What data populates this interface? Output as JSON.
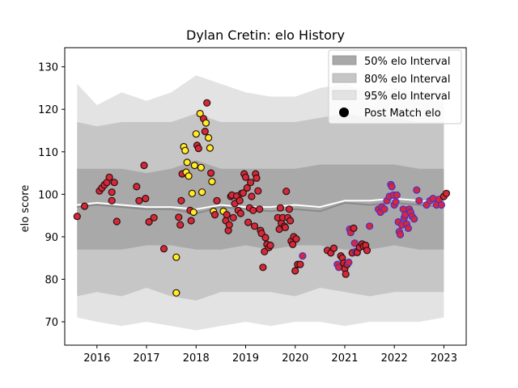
{
  "chart_data": {
    "type": "scatter",
    "title": "Dylan Cretin: elo History",
    "xlabel": "",
    "ylabel": "elo score",
    "xlim": [
      2015.35,
      2023.45
    ],
    "ylim": [
      64.5,
      134.5
    ],
    "xticks": [
      "2016",
      "2017",
      "2018",
      "2019",
      "2020",
      "2021",
      "2022",
      "2023"
    ],
    "yticks": [
      "70",
      "80",
      "90",
      "100",
      "110",
      "120",
      "130"
    ],
    "legend": {
      "position": "top-right",
      "entries": [
        "50% elo Interval",
        "80% elo Interval",
        "95% elo Interval",
        "Post Match elo"
      ]
    },
    "colors": {
      "band50": "#a9a9a9",
      "band80": "#c6c6c6",
      "band95": "#e3e3e3",
      "median_line": "#8a8a8a",
      "mean_line": "#ffffff",
      "point_red": "#d62839",
      "point_yellow": "#ffee22",
      "edge_dark": "#2a1010",
      "edge_blue": "#4b2fc9"
    },
    "intervals": {
      "x": [
        2015.6,
        2016.0,
        2016.5,
        2017.0,
        2017.5,
        2018.0,
        2018.5,
        2019.0,
        2019.5,
        2020.0,
        2020.5,
        2021.0,
        2021.5,
        2022.0,
        2022.5,
        2023.0
      ],
      "p95_upper": [
        126,
        121,
        124,
        122,
        124,
        128,
        126,
        124,
        123,
        123,
        125,
        126,
        124,
        125,
        124,
        124
      ],
      "p95_lower": [
        71,
        70,
        69,
        70,
        69,
        68,
        69,
        70,
        69,
        70,
        70,
        69,
        70,
        70,
        70,
        71
      ],
      "p80_upper": [
        117,
        116,
        117,
        117,
        117,
        119,
        117,
        117,
        117,
        117,
        118,
        119,
        118,
        118,
        117,
        117
      ],
      "p80_lower": [
        76,
        77,
        76,
        78,
        76,
        75,
        77,
        77,
        77,
        76,
        78,
        77,
        76,
        77,
        77,
        77
      ],
      "p50_upper": [
        106,
        106,
        106,
        105,
        106,
        108,
        106,
        106,
        106,
        106,
        107,
        107,
        107,
        107,
        106,
        106
      ],
      "p50_lower": [
        87,
        87,
        87,
        88,
        88,
        87,
        87,
        88,
        87,
        88,
        88,
        87,
        87,
        88,
        87,
        87
      ],
      "median": [
        97,
        97.5,
        97,
        96.5,
        96.5,
        95.5,
        97,
        96.5,
        96,
        96.5,
        96,
        98,
        97.5,
        98,
        97.5,
        97
      ],
      "mean": [
        97.5,
        98,
        97.5,
        97,
        97,
        96.5,
        97.5,
        97,
        97,
        97.5,
        97,
        98.5,
        98.5,
        99,
        98.5,
        98
      ]
    },
    "series": [
      {
        "name": "Post Match elo",
        "points": [
          [
            2015.6,
            94.8,
            "r",
            "d"
          ],
          [
            2015.75,
            97.2,
            "r",
            "d"
          ],
          [
            2016.05,
            100.8,
            "r",
            "d"
          ],
          [
            2016.1,
            101.5,
            "r",
            "d"
          ],
          [
            2016.15,
            102.2,
            "r",
            "d"
          ],
          [
            2016.2,
            102.8,
            "r",
            "d"
          ],
          [
            2016.25,
            104.0,
            "r",
            "d"
          ],
          [
            2016.3,
            98.5,
            "r",
            "d"
          ],
          [
            2016.35,
            102.8,
            "r",
            "d"
          ],
          [
            2016.4,
            93.6,
            "r",
            "d"
          ],
          [
            2016.3,
            100.5,
            "r",
            "d"
          ],
          [
            2016.8,
            101.8,
            "r",
            "d"
          ],
          [
            2016.85,
            98.5,
            "r",
            "d"
          ],
          [
            2016.95,
            106.8,
            "r",
            "d"
          ],
          [
            2016.98,
            99.0,
            "r",
            "d"
          ],
          [
            2017.05,
            93.5,
            "r",
            "d"
          ],
          [
            2017.15,
            94.5,
            "r",
            "d"
          ],
          [
            2017.35,
            87.2,
            "r",
            "d"
          ],
          [
            2017.6,
            85.2,
            "y",
            "d"
          ],
          [
            2017.6,
            76.8,
            "y",
            "d"
          ],
          [
            2017.65,
            94.6,
            "r",
            "d"
          ],
          [
            2017.68,
            92.8,
            "r",
            "d"
          ],
          [
            2017.7,
            98.5,
            "r",
            "d"
          ],
          [
            2017.72,
            104.8,
            "r",
            "d"
          ],
          [
            2017.75,
            111.2,
            "y",
            "d"
          ],
          [
            2017.78,
            110.3,
            "y",
            "d"
          ],
          [
            2017.8,
            105.2,
            "y",
            "d"
          ],
          [
            2017.82,
            107.5,
            "y",
            "d"
          ],
          [
            2017.85,
            104.3,
            "y",
            "d"
          ],
          [
            2017.88,
            96.2,
            "r",
            "d"
          ],
          [
            2017.9,
            93.8,
            "r",
            "d"
          ],
          [
            2017.92,
            100.2,
            "y",
            "d"
          ],
          [
            2017.95,
            95.8,
            "y",
            "d"
          ],
          [
            2017.97,
            106.8,
            "y",
            "d"
          ],
          [
            2018.0,
            114.2,
            "y",
            "d"
          ],
          [
            2018.02,
            111.5,
            "r",
            "d"
          ],
          [
            2018.05,
            110.8,
            "r",
            "d"
          ],
          [
            2018.08,
            119.0,
            "y",
            "d"
          ],
          [
            2018.1,
            106.3,
            "y",
            "d"
          ],
          [
            2018.12,
            100.5,
            "y",
            "d"
          ],
          [
            2018.15,
            117.8,
            "r",
            "d"
          ],
          [
            2018.18,
            114.8,
            "r",
            "d"
          ],
          [
            2018.2,
            116.8,
            "y",
            "d"
          ],
          [
            2018.22,
            121.5,
            "r",
            "d"
          ],
          [
            2018.25,
            113.3,
            "y",
            "d"
          ],
          [
            2018.28,
            110.9,
            "y",
            "d"
          ],
          [
            2018.3,
            105.0,
            "r",
            "d"
          ],
          [
            2018.32,
            103.0,
            "y",
            "d"
          ],
          [
            2018.35,
            96.0,
            "y",
            "d"
          ],
          [
            2018.38,
            95.2,
            "r",
            "d"
          ],
          [
            2018.42,
            98.5,
            "r",
            "d"
          ],
          [
            2018.55,
            96.0,
            "y",
            "d"
          ],
          [
            2018.6,
            93.8,
            "r",
            "d"
          ],
          [
            2018.62,
            95.2,
            "r",
            "d"
          ],
          [
            2018.65,
            91.5,
            "r",
            "d"
          ],
          [
            2018.67,
            92.8,
            "r",
            "d"
          ],
          [
            2018.7,
            99.5,
            "r",
            "d"
          ],
          [
            2018.72,
            99.8,
            "r",
            "d"
          ],
          [
            2018.75,
            94.5,
            "r",
            "d"
          ],
          [
            2018.78,
            97.8,
            "r",
            "d"
          ],
          [
            2018.82,
            99.6,
            "r",
            "d"
          ],
          [
            2018.85,
            96.2,
            "r",
            "d"
          ],
          [
            2018.88,
            98.5,
            "r",
            "d"
          ],
          [
            2018.9,
            95.5,
            "r",
            "d"
          ],
          [
            2018.92,
            100.2,
            "r",
            "d"
          ],
          [
            2018.95,
            100.3,
            "r",
            "d"
          ],
          [
            2018.97,
            104.8,
            "r",
            "d"
          ],
          [
            2019.0,
            104.0,
            "r",
            "d"
          ],
          [
            2019.03,
            101.5,
            "r",
            "d"
          ],
          [
            2019.05,
            93.4,
            "r",
            "d"
          ],
          [
            2019.08,
            96.8,
            "r",
            "d"
          ],
          [
            2019.1,
            102.8,
            "r",
            "d"
          ],
          [
            2019.12,
            99.5,
            "r",
            "d"
          ],
          [
            2019.15,
            96.2,
            "r",
            "d"
          ],
          [
            2019.18,
            92.5,
            "r",
            "d"
          ],
          [
            2019.2,
            104.8,
            "r",
            "d"
          ],
          [
            2019.22,
            103.8,
            "r",
            "d"
          ],
          [
            2019.25,
            100.8,
            "r",
            "d"
          ],
          [
            2019.28,
            96.5,
            "r",
            "d"
          ],
          [
            2019.3,
            91.5,
            "r",
            "d"
          ],
          [
            2019.32,
            90.8,
            "r",
            "d"
          ],
          [
            2019.35,
            82.8,
            "r",
            "d"
          ],
          [
            2019.38,
            86.5,
            "r",
            "d"
          ],
          [
            2019.4,
            89.8,
            "r",
            "d"
          ],
          [
            2019.43,
            88.2,
            "r",
            "d"
          ],
          [
            2019.47,
            87.5,
            "r",
            "d"
          ],
          [
            2019.5,
            88.0,
            "r",
            "d"
          ],
          [
            2019.65,
            94.5,
            "r",
            "d"
          ],
          [
            2019.68,
            91.8,
            "r",
            "d"
          ],
          [
            2019.7,
            96.8,
            "r",
            "d"
          ],
          [
            2019.72,
            93.2,
            "r",
            "d"
          ],
          [
            2019.75,
            94.5,
            "r",
            "d"
          ],
          [
            2019.78,
            92.5,
            "r",
            "d"
          ],
          [
            2019.8,
            92.2,
            "r",
            "d"
          ],
          [
            2019.82,
            100.7,
            "r",
            "d"
          ],
          [
            2019.85,
            94.5,
            "r",
            "d"
          ],
          [
            2019.88,
            96.5,
            "r",
            "d"
          ],
          [
            2019.9,
            93.8,
            "r",
            "d"
          ],
          [
            2019.92,
            89.0,
            "r",
            "d"
          ],
          [
            2019.95,
            88.2,
            "r",
            "d"
          ],
          [
            2019.97,
            90.0,
            "r",
            "d"
          ],
          [
            2020.0,
            82.0,
            "r",
            "d"
          ],
          [
            2020.02,
            89.5,
            "r",
            "d"
          ],
          [
            2020.05,
            83.5,
            "r",
            "d"
          ],
          [
            2020.1,
            83.5,
            "r",
            "d"
          ],
          [
            2020.15,
            85.5,
            "r",
            "b"
          ],
          [
            2020.65,
            86.8,
            "r",
            "d"
          ],
          [
            2020.72,
            86.2,
            "r",
            "d"
          ],
          [
            2020.78,
            87.3,
            "r",
            "d"
          ],
          [
            2020.85,
            83.5,
            "r",
            "b"
          ],
          [
            2020.88,
            82.8,
            "r",
            "b"
          ],
          [
            2020.92,
            85.5,
            "r",
            "d"
          ],
          [
            2020.95,
            85.0,
            "r",
            "d"
          ],
          [
            2020.98,
            83.8,
            "r",
            "d"
          ],
          [
            2021.0,
            82.5,
            "r",
            "d"
          ],
          [
            2021.02,
            81.2,
            "r",
            "d"
          ],
          [
            2021.05,
            83.5,
            "r",
            "d"
          ],
          [
            2021.08,
            84.0,
            "r",
            "b"
          ],
          [
            2021.1,
            91.8,
            "r",
            "b"
          ],
          [
            2021.12,
            91.0,
            "r",
            "b"
          ],
          [
            2021.15,
            86.2,
            "r",
            "d"
          ],
          [
            2021.18,
            92.0,
            "r",
            "d"
          ],
          [
            2021.2,
            88.5,
            "r",
            "b"
          ],
          [
            2021.22,
            86.5,
            "r",
            "b"
          ],
          [
            2021.25,
            86.3,
            "r",
            "d"
          ],
          [
            2021.3,
            87.5,
            "r",
            "d"
          ],
          [
            2021.35,
            88.3,
            "r",
            "d"
          ],
          [
            2021.38,
            87.8,
            "r",
            "d"
          ],
          [
            2021.42,
            88.0,
            "r",
            "d"
          ],
          [
            2021.45,
            86.8,
            "r",
            "d"
          ],
          [
            2021.5,
            92.5,
            "r",
            "b"
          ],
          [
            2021.68,
            96.5,
            "r",
            "b"
          ],
          [
            2021.72,
            95.8,
            "r",
            "b"
          ],
          [
            2021.75,
            97.0,
            "r",
            "b"
          ],
          [
            2021.8,
            96.5,
            "r",
            "b"
          ],
          [
            2021.85,
            98.5,
            "r",
            "b"
          ],
          [
            2021.9,
            99.5,
            "r",
            "b"
          ],
          [
            2021.93,
            102.3,
            "r",
            "b"
          ],
          [
            2021.95,
            101.8,
            "r",
            "b"
          ],
          [
            2021.98,
            99.8,
            "r",
            "b"
          ],
          [
            2022.0,
            97.5,
            "r",
            "b"
          ],
          [
            2022.03,
            98.2,
            "r",
            "b"
          ],
          [
            2022.05,
            99.8,
            "r",
            "b"
          ],
          [
            2022.08,
            93.5,
            "r",
            "b"
          ],
          [
            2022.1,
            91.2,
            "r",
            "b"
          ],
          [
            2022.12,
            90.5,
            "r",
            "b"
          ],
          [
            2022.15,
            92.8,
            "r",
            "b"
          ],
          [
            2022.18,
            96.5,
            "r",
            "b"
          ],
          [
            2022.2,
            94.5,
            "r",
            "b"
          ],
          [
            2022.22,
            95.2,
            "r",
            "b"
          ],
          [
            2022.25,
            93.0,
            "r",
            "b"
          ],
          [
            2022.28,
            92.0,
            "r",
            "b"
          ],
          [
            2022.3,
            96.5,
            "r",
            "b"
          ],
          [
            2022.33,
            95.8,
            "r",
            "b"
          ],
          [
            2022.36,
            94.8,
            "r",
            "b"
          ],
          [
            2022.4,
            94.2,
            "r",
            "b"
          ],
          [
            2022.45,
            101.0,
            "r",
            "b"
          ],
          [
            2022.5,
            98.5,
            "r",
            "b"
          ],
          [
            2022.65,
            97.5,
            "r",
            "b"
          ],
          [
            2022.72,
            98.5,
            "r",
            "b"
          ],
          [
            2022.78,
            99.0,
            "r",
            "b"
          ],
          [
            2022.85,
            97.5,
            "r",
            "b"
          ],
          [
            2022.9,
            98.8,
            "r",
            "b"
          ],
          [
            2022.95,
            97.5,
            "r",
            "b"
          ],
          [
            2023.0,
            99.5,
            "r",
            "d"
          ],
          [
            2023.05,
            100.2,
            "r",
            "d"
          ]
        ]
      }
    ]
  }
}
